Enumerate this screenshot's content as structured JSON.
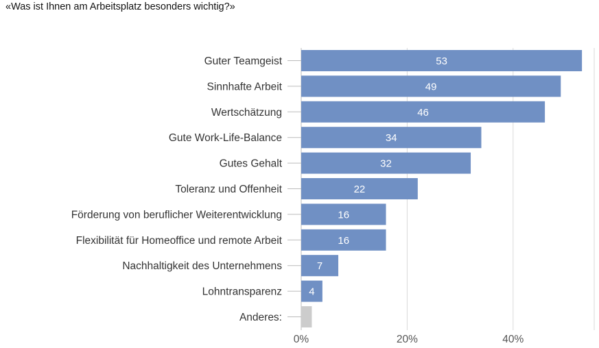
{
  "chart_data": {
    "type": "bar",
    "orientation": "horizontal",
    "title": "«Was ist Ihnen am Arbeitsplatz besonders wichtig?»",
    "categories": [
      "Guter Teamgeist",
      "Sinnhafte Arbeit",
      "Wertschätzung",
      "Gute Work-Life-Balance",
      "Gutes Gehalt",
      "Toleranz und Offenheit",
      "Förderung von beruflicher Weiterentwicklung",
      "Flexibilität für Homeoffice und remote Arbeit",
      "Nachhaltigkeit des Unternehmens",
      "Lohntransparenz",
      "Anderes:"
    ],
    "values": [
      53,
      49,
      46,
      34,
      32,
      22,
      16,
      16,
      7,
      4,
      2
    ],
    "data_labels": [
      "53",
      "49",
      "46",
      "34",
      "32",
      "22",
      "16",
      "16",
      "7",
      "4",
      ""
    ],
    "bar_colors": [
      "#7090c4",
      "#7090c4",
      "#7090c4",
      "#7090c4",
      "#7090c4",
      "#7090c4",
      "#7090c4",
      "#7090c4",
      "#7090c4",
      "#7090c4",
      "#cccccc"
    ],
    "xlim": [
      0,
      55
    ],
    "x_ticks": [
      0,
      20,
      40
    ],
    "x_tick_labels": [
      "0%",
      "20%",
      "40%"
    ],
    "grid": true,
    "xlabel": "",
    "ylabel": "",
    "legend": "none"
  }
}
